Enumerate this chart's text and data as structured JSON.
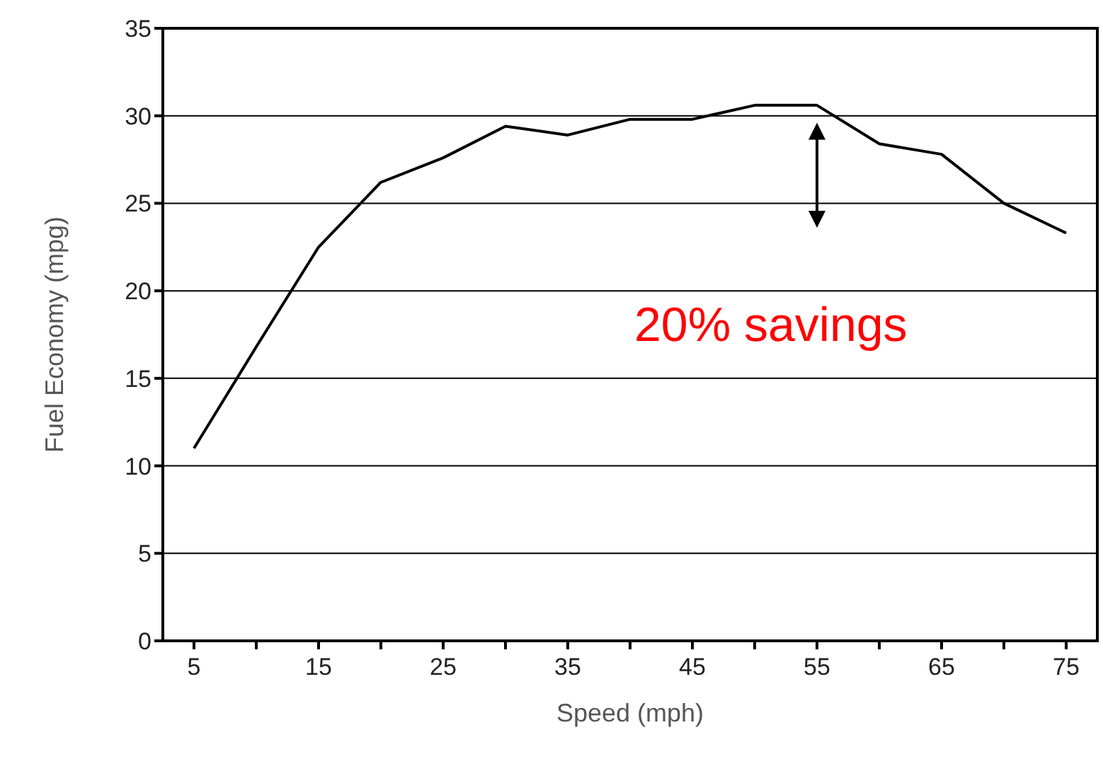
{
  "chart_data": {
    "type": "line",
    "xlabel": "Speed  (mph)",
    "ylabel": "Fuel Economy (mpg)",
    "categories": [
      "5",
      null,
      "15",
      null,
      "25",
      null,
      "35",
      null,
      "45",
      null,
      "55",
      null,
      "65",
      null,
      "75"
    ],
    "series": [
      {
        "color": "#000000",
        "values": [
          11.0,
          16.8,
          22.5,
          26.2,
          27.6,
          29.4,
          28.9,
          29.8,
          29.8,
          30.6,
          30.6,
          28.4,
          27.8,
          25.0,
          23.3
        ]
      }
    ],
    "ylim": [
      0,
      35
    ],
    "yticks": [
      0,
      5,
      10,
      15,
      20,
      25,
      30,
      35
    ],
    "grid": "y",
    "marker": "none",
    "line_style": "solid",
    "annotations": [
      "20% savings"
    ]
  }
}
